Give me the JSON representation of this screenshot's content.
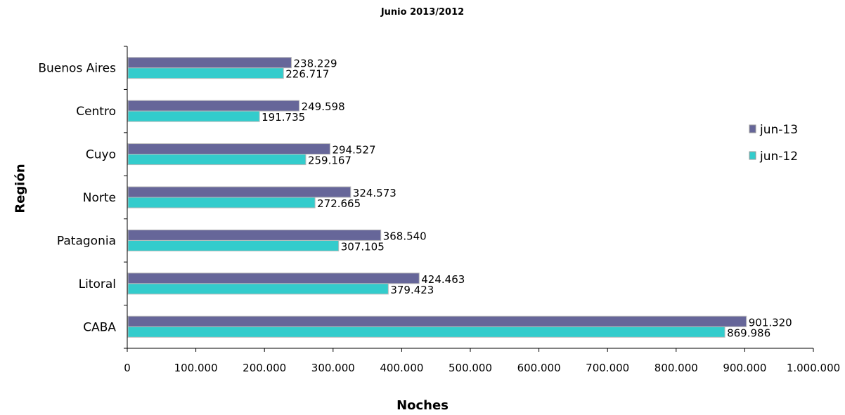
{
  "chart_data": {
    "type": "bar",
    "orientation": "horizontal",
    "subtitle": "Junio 2013/2012",
    "xlabel": "Noches",
    "ylabel": "Región",
    "categories": [
      "Buenos Aires",
      "Centro",
      "Cuyo",
      "Norte",
      "Patagonia",
      "Litoral",
      "CABA"
    ],
    "xlim": [
      0,
      1000000
    ],
    "x_ticks": [
      {
        "value": 0,
        "label": "0"
      },
      {
        "value": 100000,
        "label": "100.000"
      },
      {
        "value": 200000,
        "label": "200.000"
      },
      {
        "value": 300000,
        "label": "300.000"
      },
      {
        "value": 400000,
        "label": "400.000"
      },
      {
        "value": 500000,
        "label": "500.000"
      },
      {
        "value": 600000,
        "label": "600.000"
      },
      {
        "value": 700000,
        "label": "700.000"
      },
      {
        "value": 800000,
        "label": "800.000"
      },
      {
        "value": 900000,
        "label": "900.000"
      },
      {
        "value": 1000000,
        "label": "1.000.000"
      }
    ],
    "series": [
      {
        "name": "jun-13",
        "color": "#666699",
        "values": [
          238229,
          249598,
          294527,
          324573,
          368540,
          424463,
          901320
        ],
        "labels": [
          "238.229",
          "249.598",
          "294.527",
          "324.573",
          "368.540",
          "424.463",
          "901.320"
        ]
      },
      {
        "name": "jun-12",
        "color": "#33CCCC",
        "values": [
          226717,
          191735,
          259167,
          272665,
          307105,
          379423,
          869986
        ],
        "labels": [
          "226.717",
          "191.735",
          "259.167",
          "272.665",
          "307.105",
          "379.423",
          "869.986"
        ]
      }
    ],
    "legend_position": "right",
    "grid": false
  }
}
